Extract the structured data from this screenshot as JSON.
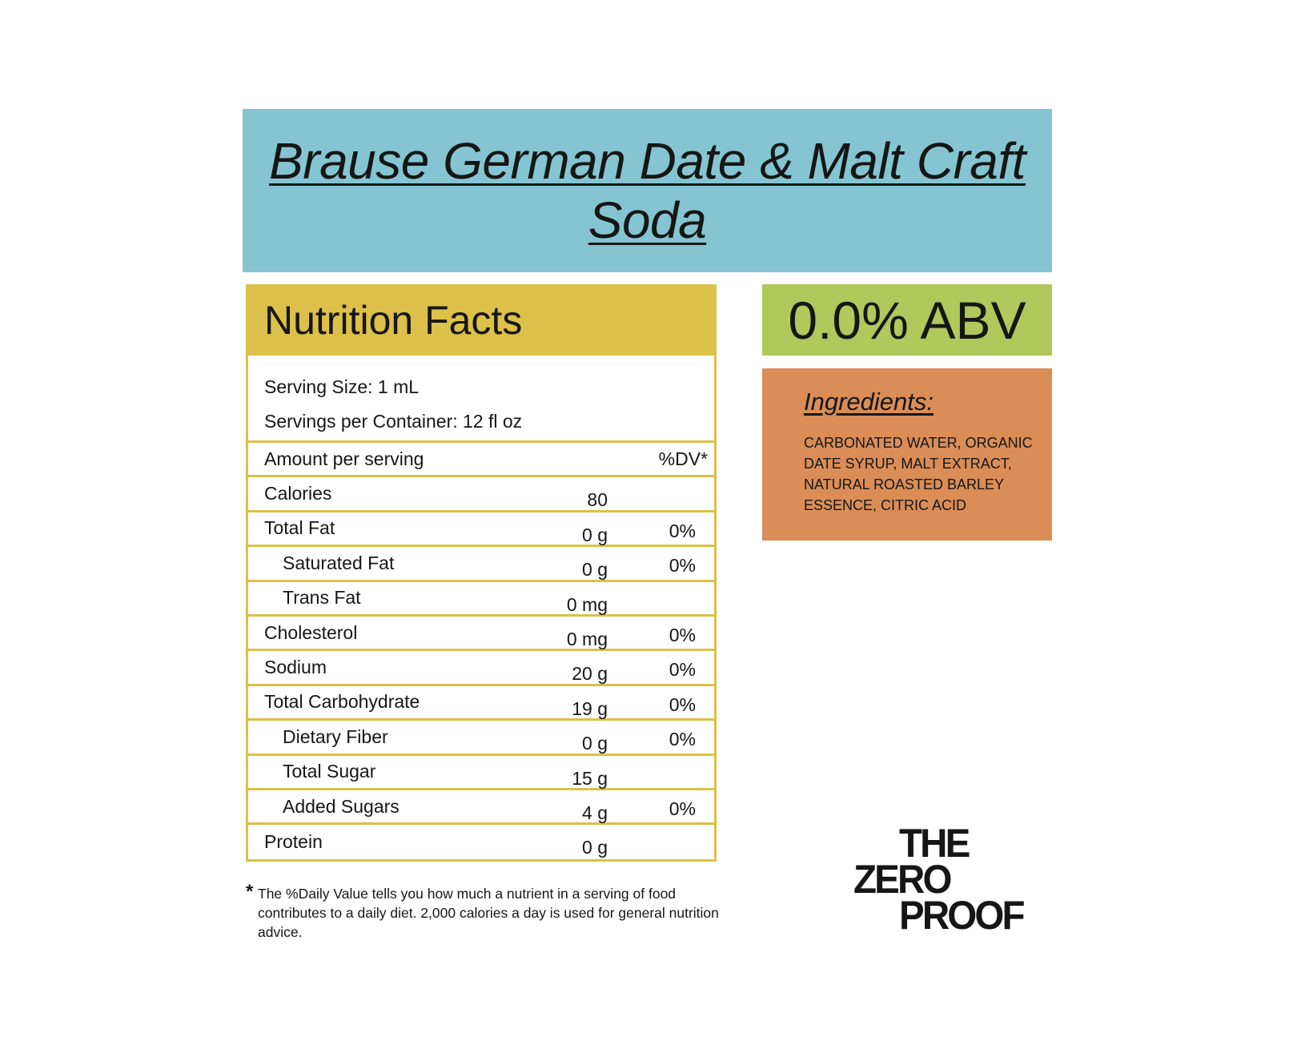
{
  "title": "Brause German Date & Malt Craft Soda",
  "nutrition": {
    "heading": "Nutrition Facts",
    "serving_size": "Serving Size: 1 mL",
    "servings_per_container": "Servings per Container: 12 fl oz",
    "amount_header": "Amount per serving",
    "dv_header": "%DV*",
    "rows": [
      {
        "label": "Calories",
        "amount": "80",
        "dv": "",
        "indent": false
      },
      {
        "label": "Total Fat",
        "amount": "0 g",
        "dv": "0%",
        "indent": false
      },
      {
        "label": "Saturated Fat",
        "amount": "0 g",
        "dv": "0%",
        "indent": true
      },
      {
        "label": "Trans Fat",
        "amount": "0 mg",
        "dv": "",
        "indent": true
      },
      {
        "label": "Cholesterol",
        "amount": "0 mg",
        "dv": "0%",
        "indent": false
      },
      {
        "label": "Sodium",
        "amount": "20 g",
        "dv": "0%",
        "indent": false
      },
      {
        "label": "Total Carbohydrate",
        "amount": "19 g",
        "dv": "0%",
        "indent": false
      },
      {
        "label": "Dietary Fiber",
        "amount": "0 g",
        "dv": "0%",
        "indent": true
      },
      {
        "label": "Total Sugar",
        "amount": "15 g",
        "dv": "",
        "indent": true
      },
      {
        "label": "Added Sugars",
        "amount": "4 g",
        "dv": "0%",
        "indent": true
      },
      {
        "label": "Protein",
        "amount": "0 g",
        "dv": "",
        "indent": false
      }
    ],
    "footnote_star": "*",
    "footnote": "The %Daily Value tells you how much a nutrient in a serving of food contributes to a daily diet. 2,000 calories a day is used for general nutrition advice."
  },
  "abv": "0.0% ABV",
  "ingredients": {
    "heading": "Ingredients:",
    "text": "CARBONATED WATER, ORGANIC DATE SYRUP, MALT EXTRACT, NATURAL ROASTED BARLEY ESSENCE, CITRIC ACID"
  },
  "logo": {
    "lines": [
      "THE",
      "ZERO",
      "PROOF"
    ]
  },
  "colors": {
    "title_bg": "#84c5d1",
    "nutrition_accent": "#dcc049",
    "abv_bg": "#b0c85c",
    "ingredients_bg": "#da8d56"
  }
}
